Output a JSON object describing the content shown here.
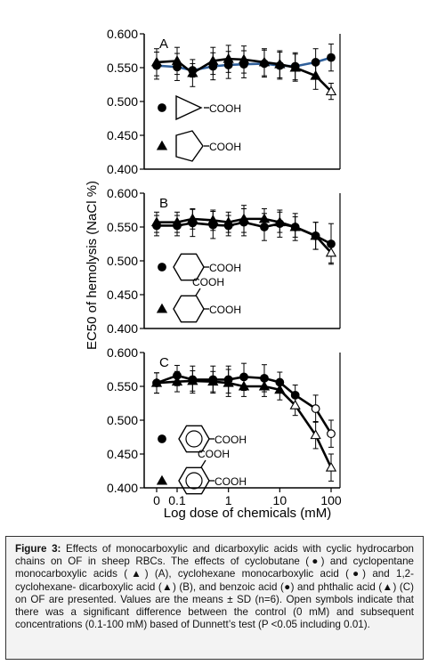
{
  "chart_data": {
    "type": "line",
    "ylabel": "EC50 of hemolysis (NaCl %)",
    "xlabel": "Log dose of chemicals (mM)",
    "x_tick_labels": [
      "0",
      "0.1",
      "1",
      "10",
      "100"
    ],
    "x_doses_mM": [
      0,
      0.1,
      0.2,
      0.5,
      1,
      2,
      5,
      10,
      20,
      50,
      100
    ],
    "x_scale": "log (0 plotted at left)",
    "ylim": [
      0.4,
      0.6
    ],
    "yticks": [
      "0.400",
      "0.450",
      "0.500",
      "0.550",
      "0.600"
    ],
    "panels": [
      {
        "label": "A",
        "series": [
          {
            "marker": "circle",
            "values": [
              0.553,
              0.551,
              0.546,
              0.552,
              0.554,
              0.555,
              0.556,
              0.553,
              0.552,
              0.558,
              0.565
            ],
            "open": [
              false,
              false,
              false,
              false,
              false,
              false,
              false,
              false,
              false,
              false,
              false
            ],
            "sd": [
              0.02,
              0.02,
              0.01,
              0.02,
              0.02,
              0.02,
              0.02,
              0.02,
              0.02,
              0.02,
              0.02
            ]
          },
          {
            "marker": "triangle",
            "values": [
              0.558,
              0.56,
              0.542,
              0.56,
              0.563,
              0.562,
              0.558,
              0.555,
              0.55,
              0.538,
              0.515
            ],
            "open": [
              false,
              false,
              false,
              false,
              false,
              false,
              false,
              false,
              false,
              false,
              true
            ],
            "sd": [
              0.02,
              0.02,
              0.02,
              0.02,
              0.02,
              0.02,
              0.02,
              0.02,
              0.02,
              0.02,
              0.012
            ]
          }
        ],
        "legend": [
          {
            "marker": "circle",
            "structure": "cyclobutane",
            "group": "COOH"
          },
          {
            "marker": "triangle",
            "structure": "cyclopentane",
            "group": "COOH"
          }
        ]
      },
      {
        "label": "B",
        "series": [
          {
            "marker": "circle",
            "values": [
              0.552,
              0.552,
              0.556,
              0.553,
              0.552,
              0.557,
              0.55,
              0.555,
              0.55,
              0.537,
              0.525
            ],
            "open": [
              false,
              false,
              false,
              false,
              false,
              false,
              false,
              false,
              false,
              false,
              false
            ],
            "sd": [
              0.015,
              0.015,
              0.02,
              0.02,
              0.015,
              0.02,
              0.02,
              0.02,
              0.02,
              0.02,
              0.03
            ]
          },
          {
            "marker": "triangle",
            "values": [
              0.557,
              0.557,
              0.562,
              0.56,
              0.557,
              0.562,
              0.562,
              0.557,
              0.55,
              0.537,
              0.512
            ],
            "open": [
              false,
              false,
              false,
              false,
              false,
              false,
              false,
              false,
              false,
              false,
              true
            ],
            "sd": [
              0.015,
              0.015,
              0.015,
              0.015,
              0.015,
              0.02,
              0.015,
              0.015,
              0.015,
              0.02,
              0.015
            ]
          }
        ],
        "legend": [
          {
            "marker": "circle",
            "structure": "cyclohexane",
            "group": "COOH"
          },
          {
            "marker": "triangle",
            "structure": "cyclohexane-1,2",
            "group": "COOH",
            "group2": "COOH"
          }
        ]
      },
      {
        "label": "C",
        "series": [
          {
            "marker": "circle",
            "values": [
              0.555,
              0.566,
              0.56,
              0.56,
              0.56,
              0.564,
              0.562,
              0.556,
              0.537,
              0.517,
              0.48
            ],
            "open": [
              false,
              false,
              false,
              false,
              false,
              false,
              false,
              false,
              false,
              true,
              true
            ],
            "sd": [
              0.015,
              0.015,
              0.02,
              0.02,
              0.02,
              0.02,
              0.02,
              0.015,
              0.015,
              0.02,
              0.02
            ]
          },
          {
            "marker": "triangle",
            "values": [
              0.555,
              0.557,
              0.558,
              0.557,
              0.555,
              0.55,
              0.55,
              0.545,
              0.522,
              0.478,
              0.43
            ],
            "open": [
              false,
              false,
              false,
              false,
              false,
              false,
              false,
              false,
              true,
              true,
              true
            ],
            "sd": [
              0.015,
              0.015,
              0.015,
              0.015,
              0.02,
              0.015,
              0.015,
              0.015,
              0.015,
              0.02,
              0.02
            ]
          }
        ],
        "legend": [
          {
            "marker": "circle",
            "structure": "benzene",
            "group": "COOH"
          },
          {
            "marker": "triangle",
            "structure": "benzene-1,2",
            "group": "COOH",
            "group2": "COOH"
          }
        ]
      }
    ]
  },
  "caption": {
    "label": "Figure 3:",
    "text": " Effects of monocarboxylic and dicarboxylic acids with cyclic hydrocarbon chains on OF in sheep RBCs. The effects of cyclobutane (●) and cyclopentane monocarboxylic acids (▲) (A), cyclohexane monocarboxylic acid (●) and 1,2-cyclohexane- dicarboxylic acid (▲) (B), and benzoic acid (●) and phthalic acid (▲) (C) on OF are presented. Values are the means ± SD (n=6). Open symbols indicate that there was a significant difference between the control (0 mM) and subsequent concentrations (0.1-100 mM) based of Dunnett’s test (P <0.05 including 0.01)."
  },
  "colors": {
    "ink": "#000000",
    "blue_line": "#2f5f9a",
    "caption_bg": "#f3f3f3"
  }
}
